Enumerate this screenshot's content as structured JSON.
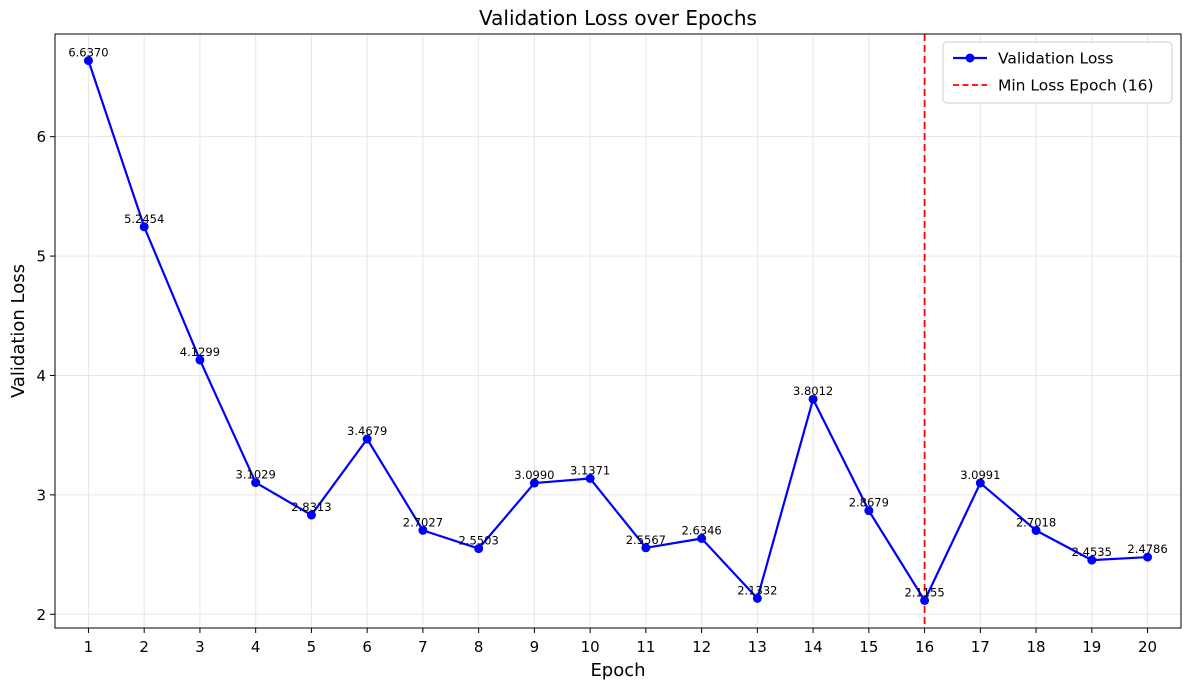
{
  "chart_data": {
    "type": "line",
    "title": "Validation Loss over Epochs",
    "xlabel": "Epoch",
    "ylabel": "Validation Loss",
    "x": [
      1,
      2,
      3,
      4,
      5,
      6,
      7,
      8,
      9,
      10,
      11,
      12,
      13,
      14,
      15,
      16,
      17,
      18,
      19,
      20
    ],
    "x_tick_labels": [
      "1",
      "2",
      "3",
      "4",
      "5",
      "6",
      "7",
      "8",
      "9",
      "10",
      "11",
      "12",
      "13",
      "14",
      "15",
      "16",
      "17",
      "18",
      "19",
      "20"
    ],
    "y_ticks": [
      2,
      3,
      4,
      5,
      6
    ],
    "y_tick_labels": [
      "2",
      "3",
      "4",
      "5",
      "6"
    ],
    "xlim": [
      0.4,
      20.6
    ],
    "ylim": [
      1.885,
      6.86
    ],
    "grid": true,
    "legend_position": "top-right",
    "series": [
      {
        "name": "Validation Loss",
        "color": "#0000ff",
        "marker": "circle",
        "values": [
          6.637,
          5.2454,
          4.1299,
          3.1029,
          2.8313,
          3.4679,
          2.7027,
          2.5503,
          3.099,
          3.1371,
          2.5567,
          2.6346,
          2.1332,
          3.8012,
          2.8679,
          2.1155,
          3.0991,
          2.7018,
          2.4535,
          2.4786
        ],
        "labels": [
          "6.6370",
          "5.2454",
          "4.1299",
          "3.1029",
          "2.8313",
          "3.4679",
          "2.7027",
          "2.5503",
          "3.0990",
          "3.1371",
          "2.5567",
          "2.6346",
          "2.1332",
          "3.8012",
          "2.8679",
          "2.1155",
          "3.0991",
          "2.7018",
          "2.4535",
          "2.4786"
        ]
      }
    ],
    "reference_lines": [
      {
        "name": "Min Loss Epoch (16)",
        "orientation": "vertical",
        "x": 16,
        "color": "#ff0000",
        "style": "dashed"
      }
    ]
  }
}
